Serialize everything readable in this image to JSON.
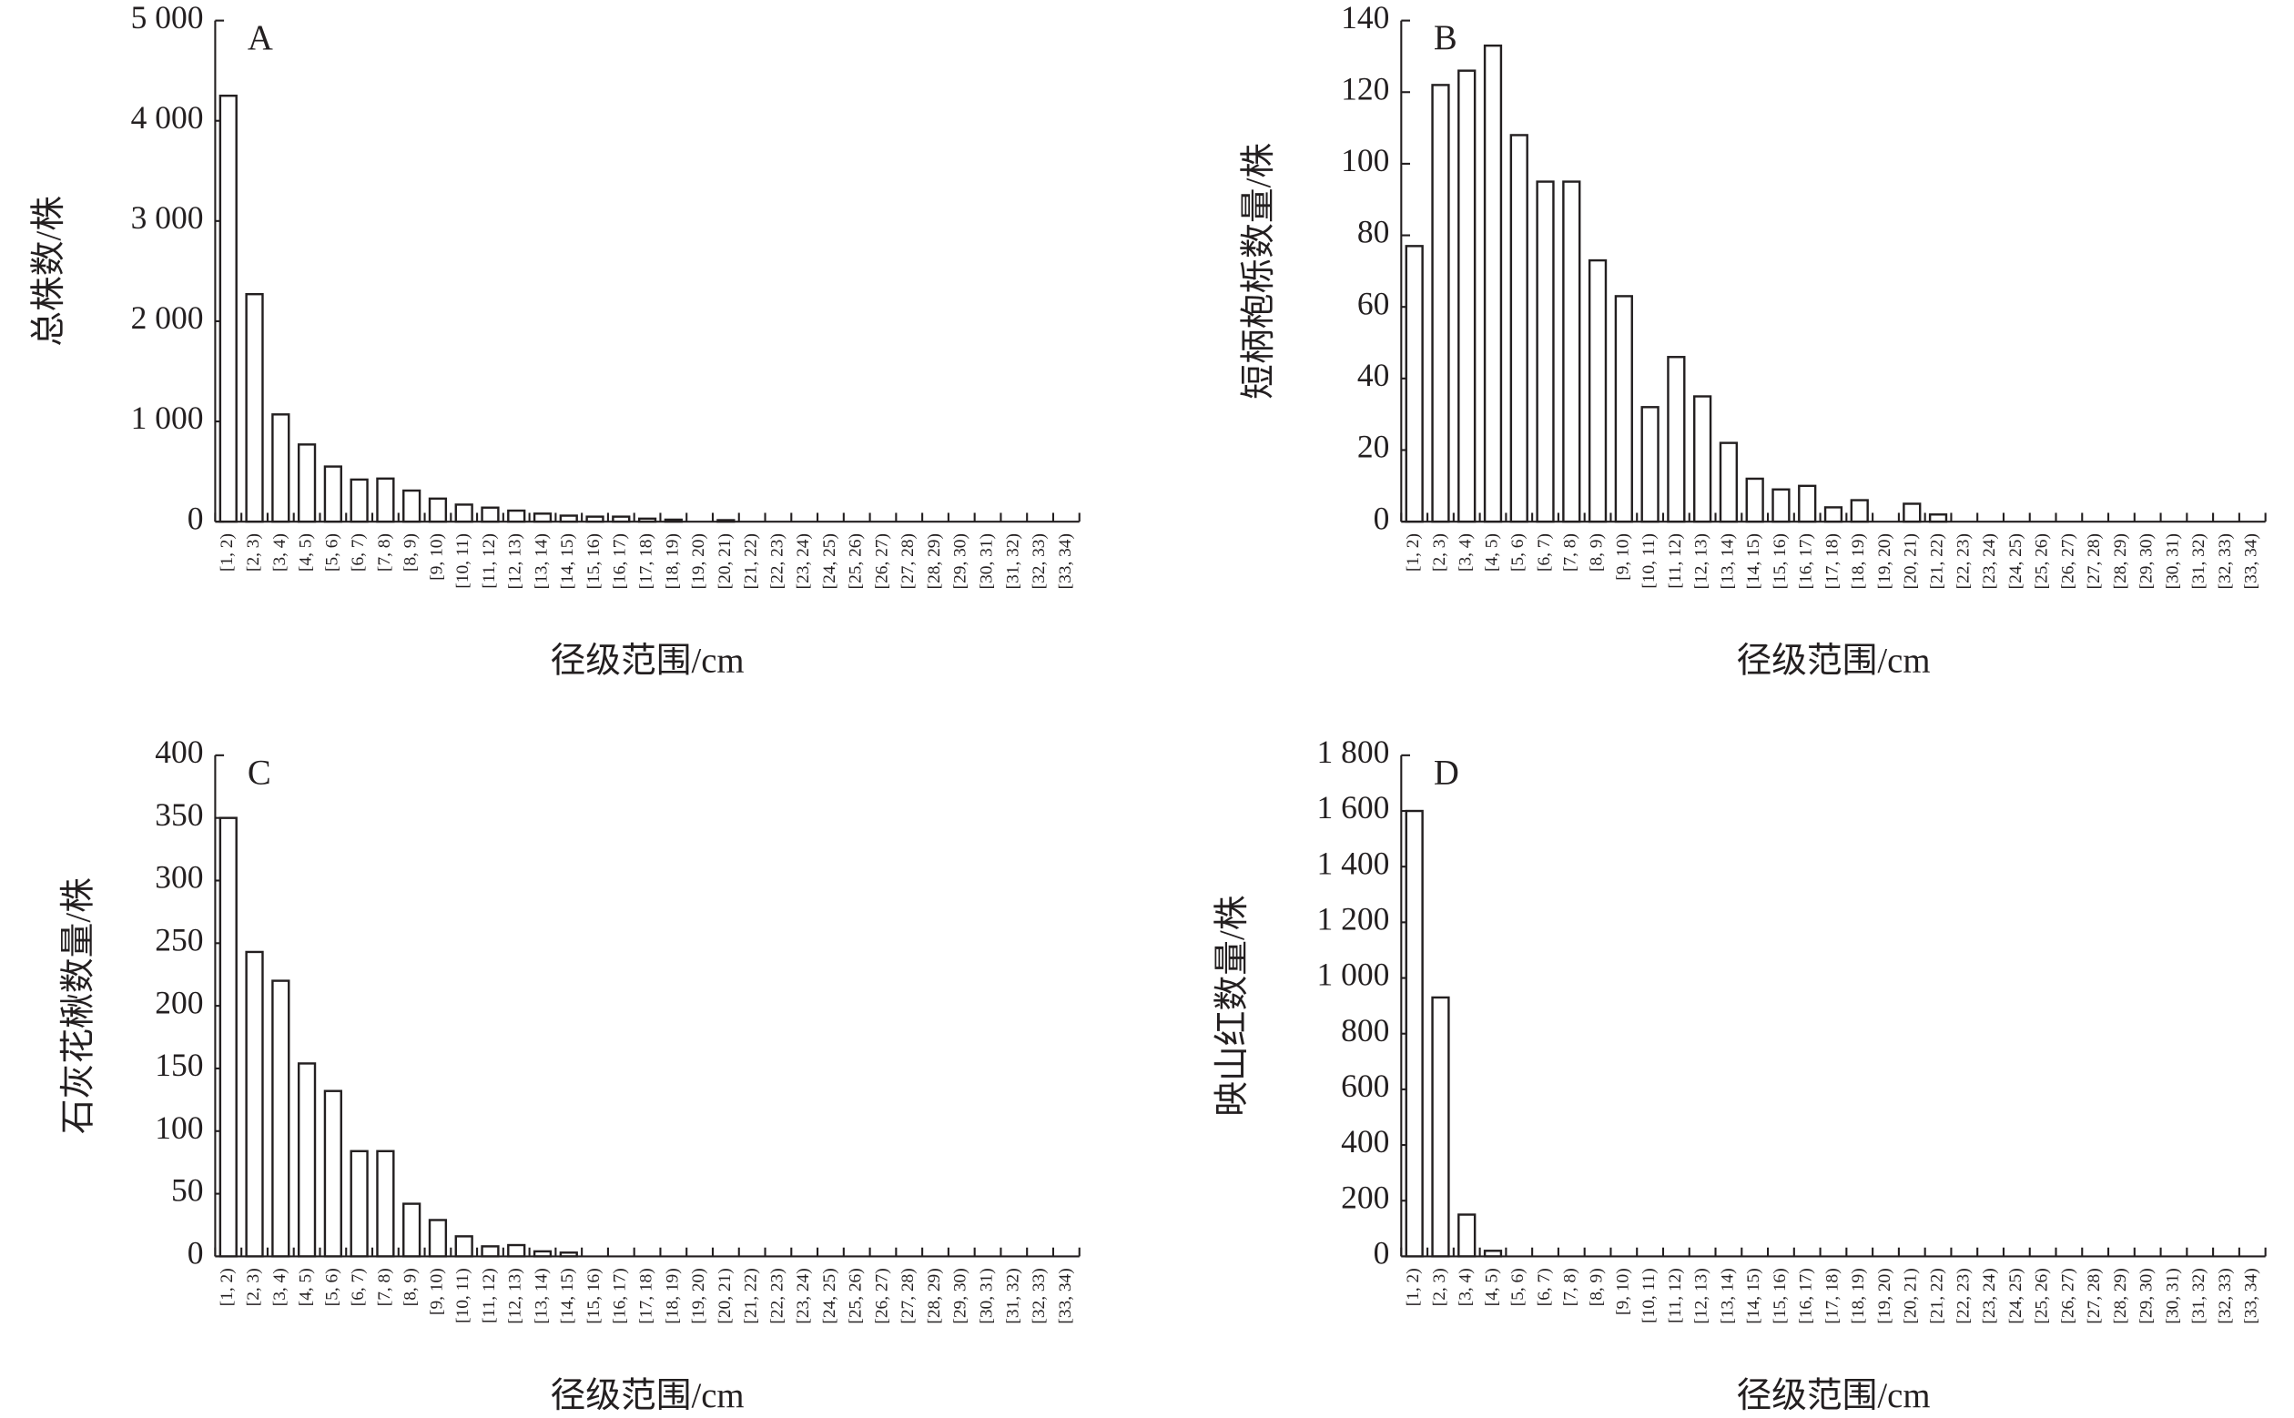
{
  "chart_data": [
    {
      "type": "bar",
      "panel": "A",
      "x_label": "径级范围/cm",
      "y_label": "总株数/株",
      "categories": [
        "[1, 2)",
        "[2, 3)",
        "[3, 4)",
        "[4, 5)",
        "[5, 6)",
        "[6, 7)",
        "[7, 8)",
        "[8, 9)",
        "[9, 10)",
        "[10, 11)",
        "[11, 12)",
        "[12, 13)",
        "[13, 14)",
        "[14, 15)",
        "[15, 16)",
        "[16, 17)",
        "[17, 18)",
        "[18, 19)",
        "[19, 20)",
        "[20, 21)",
        "[21, 22)",
        "[22, 23)",
        "[23, 24)",
        "[24, 25)",
        "[25, 26)",
        "[26, 27)",
        "[27, 28)",
        "[28, 29)",
        "[29, 30)",
        "[30, 31)",
        "[31, 32)",
        "[32, 33)",
        "[33, 34)"
      ],
      "values": [
        4250,
        2270,
        1070,
        770,
        550,
        420,
        430,
        310,
        230,
        170,
        140,
        110,
        80,
        60,
        50,
        50,
        30,
        20,
        0,
        15,
        0,
        0,
        0,
        0,
        0,
        0,
        0,
        0,
        0,
        0,
        0,
        0,
        0
      ],
      "ylim": [
        0,
        5000
      ],
      "yticks": [
        0,
        {
          "value": 1000,
          "label": "1 000"
        },
        {
          "value": 2000,
          "label": "2 000"
        },
        {
          "value": 3000,
          "label": "3 000"
        },
        {
          "value": 4000,
          "label": "4 000"
        },
        {
          "value": 5000,
          "label": "5 000"
        }
      ]
    },
    {
      "type": "bar",
      "panel": "B",
      "x_label": "径级范围/cm",
      "y_label": "短柄枹栎数量/株",
      "categories": [
        "[1, 2)",
        "[2, 3)",
        "[3, 4)",
        "[4, 5)",
        "[5, 6)",
        "[6, 7)",
        "[7, 8)",
        "[8, 9)",
        "[9, 10)",
        "[10, 11)",
        "[11, 12)",
        "[12, 13)",
        "[13, 14)",
        "[14, 15)",
        "[15, 16)",
        "[16, 17)",
        "[17, 18)",
        "[18, 19)",
        "[19, 20)",
        "[20, 21)",
        "[21, 22)",
        "[22, 23)",
        "[23, 24)",
        "[24, 25)",
        "[25, 26)",
        "[26, 27)",
        "[27, 28)",
        "[28, 29)",
        "[29, 30)",
        "[30, 31)",
        "[31, 32)",
        "[32, 33)",
        "[33, 34)"
      ],
      "values": [
        77,
        122,
        126,
        133,
        108,
        95,
        95,
        73,
        63,
        32,
        46,
        35,
        22,
        12,
        9,
        10,
        4,
        6,
        0,
        5,
        2,
        0,
        0,
        0,
        0,
        0,
        0,
        0,
        0,
        0,
        0,
        0,
        0
      ],
      "ylim": [
        0,
        140
      ],
      "yticks": [
        0,
        20,
        40,
        60,
        80,
        100,
        120,
        140
      ]
    },
    {
      "type": "bar",
      "panel": "C",
      "x_label": "径级范围/cm",
      "y_label": "石灰花楸数量/株",
      "categories": [
        "[1, 2)",
        "[2, 3)",
        "[3, 4)",
        "[4, 5)",
        "[5, 6)",
        "[6, 7)",
        "[7, 8)",
        "[8, 9)",
        "[9, 10)",
        "[10, 11)",
        "[11, 12)",
        "[12, 13)",
        "[13, 14)",
        "[14, 15)",
        "[15, 16)",
        "[16, 17)",
        "[17, 18)",
        "[18, 19)",
        "[19, 20)",
        "[20, 21)",
        "[21, 22)",
        "[22, 23)",
        "[23, 24)",
        "[24, 25)",
        "[25, 26)",
        "[26, 27)",
        "[27, 28)",
        "[28, 29)",
        "[29, 30)",
        "[30, 31)",
        "[31, 32)",
        "[32, 33)",
        "[33, 34)"
      ],
      "values": [
        350,
        243,
        220,
        154,
        132,
        84,
        84,
        42,
        29,
        16,
        8,
        9,
        4,
        3,
        0,
        0,
        0,
        0,
        0,
        0,
        0,
        0,
        0,
        0,
        0,
        0,
        0,
        0,
        0,
        0,
        0,
        0,
        0
      ],
      "ylim": [
        0,
        400
      ],
      "yticks": [
        0,
        50,
        100,
        150,
        200,
        250,
        300,
        350,
        400
      ]
    },
    {
      "type": "bar",
      "panel": "D",
      "x_label": "径级范围/cm",
      "y_label": "映山红数量/株",
      "categories": [
        "[1, 2)",
        "[2, 3)",
        "[3, 4)",
        "[4, 5)",
        "[5, 6)",
        "[6, 7)",
        "[7, 8)",
        "[8, 9)",
        "[9, 10)",
        "[10, 11)",
        "[11, 12)",
        "[12, 13)",
        "[13, 14)",
        "[14, 15)",
        "[15, 16)",
        "[16, 17)",
        "[17, 18)",
        "[18, 19)",
        "[19, 20)",
        "[20, 21)",
        "[21, 22)",
        "[22, 23)",
        "[23, 24)",
        "[24, 25)",
        "[25, 26)",
        "[26, 27)",
        "[27, 28)",
        "[28, 29)",
        "[29, 30)",
        "[30, 31)",
        "[31, 32)",
        "[32, 33)",
        "[33, 34)"
      ],
      "values": [
        1600,
        930,
        150,
        20,
        0,
        0,
        0,
        0,
        0,
        0,
        0,
        0,
        0,
        0,
        0,
        0,
        0,
        0,
        0,
        0,
        0,
        0,
        0,
        0,
        0,
        0,
        0,
        0,
        0,
        0,
        0,
        0,
        0
      ],
      "ylim": [
        0,
        1800
      ],
      "yticks": [
        0,
        200,
        400,
        600,
        800,
        {
          "value": 1000,
          "label": "1 000"
        },
        {
          "value": 1200,
          "label": "1 200"
        },
        {
          "value": 1400,
          "label": "1 400"
        },
        {
          "value": 1600,
          "label": "1 600"
        },
        {
          "value": 1800,
          "label": "1 800"
        }
      ]
    }
  ]
}
